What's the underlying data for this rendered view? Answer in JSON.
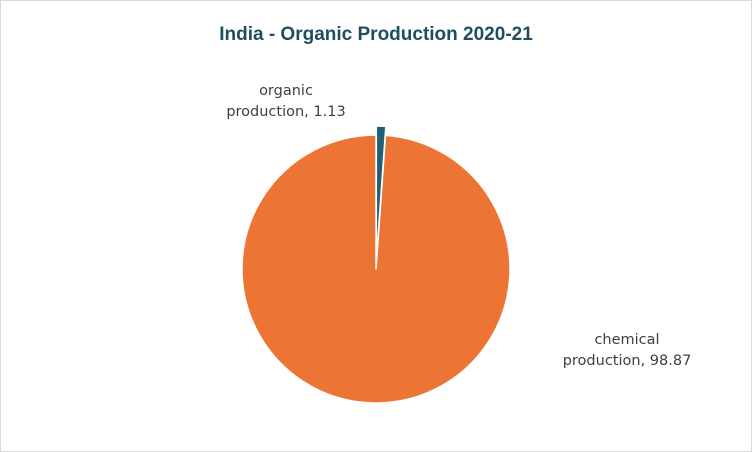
{
  "chart_data": {
    "type": "pie",
    "title": "India - Organic Production 2020-21",
    "slices": [
      {
        "label_line1": "organic",
        "label_line2": "production, 1.13",
        "category": "organic production",
        "value": 1.13,
        "color": "#1f5f7a",
        "exploded": true
      },
      {
        "label_line1": "chemical",
        "label_line2": "production, 98.87",
        "category": "chemical production",
        "value": 98.87,
        "color": "#ec7434",
        "exploded": false
      }
    ],
    "legend": "none",
    "data_labels": "outside"
  }
}
